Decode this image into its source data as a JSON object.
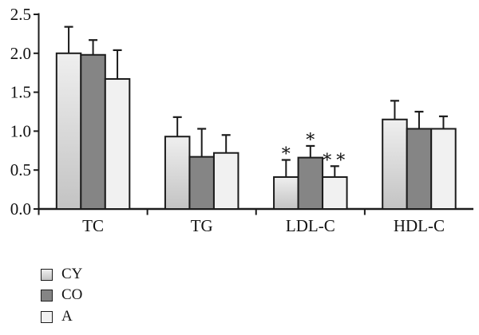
{
  "chart_data": {
    "type": "bar",
    "title": "",
    "xlabel": "",
    "ylabel": "",
    "categories": [
      "TC",
      "TG",
      "LDL-C",
      "HDL-C"
    ],
    "series": [
      {
        "name": "CY",
        "values": [
          2.0,
          0.93,
          0.41,
          1.15
        ],
        "errors": [
          0.34,
          0.25,
          0.22,
          0.24
        ],
        "fill": {
          "type": "gradient",
          "top": "#efefef",
          "bottom": "#c3c3c3"
        }
      },
      {
        "name": "CO",
        "values": [
          1.98,
          0.67,
          0.66,
          1.03
        ],
        "errors": [
          0.19,
          0.36,
          0.15,
          0.22
        ],
        "fill": {
          "type": "solid",
          "color": "#858585"
        }
      },
      {
        "name": "A",
        "values": [
          1.67,
          0.72,
          0.41,
          1.03
        ],
        "errors": [
          0.37,
          0.23,
          0.14,
          0.16
        ],
        "fill": {
          "type": "solid",
          "color": "#f1f1f1"
        }
      }
    ],
    "significance": [
      {
        "category": "LDL-C",
        "category_index": 2,
        "series": "CY",
        "series_index": 0,
        "mark": "∗"
      },
      {
        "category": "LDL-C",
        "category_index": 2,
        "series": "CO",
        "series_index": 1,
        "mark": "∗"
      },
      {
        "category": "LDL-C",
        "category_index": 2,
        "series": "A",
        "series_index": 2,
        "mark": "∗∗"
      }
    ],
    "ylim": [
      0,
      2.5
    ],
    "yticks": [
      "0.0",
      "0.5",
      "1.0",
      "1.5",
      "2.0",
      "2.5"
    ],
    "grid": false,
    "legend": {
      "position": "bottom-left",
      "entries": [
        "CY",
        "CO",
        "A"
      ]
    },
    "ink_color": "#1c1c1c"
  }
}
